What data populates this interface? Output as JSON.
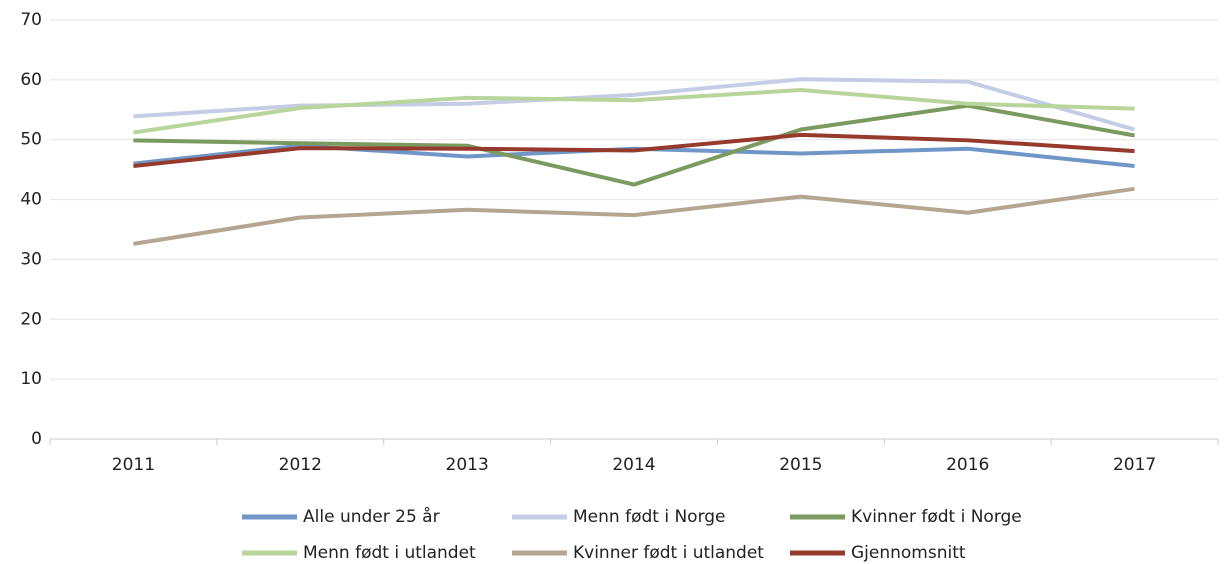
{
  "chart_data": {
    "type": "line",
    "categories": [
      "2011",
      "2012",
      "2013",
      "2014",
      "2015",
      "2016",
      "2017"
    ],
    "series": [
      {
        "name": "Alle under 25 år",
        "color": "#7096c8",
        "values": [
          46,
          49,
          47.2,
          48.5,
          47.7,
          48.5,
          45.6
        ]
      },
      {
        "name": "Menn født i Norge",
        "color": "#c4cce6",
        "values": [
          53.9,
          55.7,
          56,
          57.5,
          60.1,
          59.7,
          51.7
        ]
      },
      {
        "name": "Kvinner født i Norge",
        "color": "#7b9a60",
        "values": [
          49.9,
          49.4,
          49,
          42.5,
          51.7,
          55.7,
          50.7
        ]
      },
      {
        "name": "Menn født i utlandet",
        "color": "#b8d59c",
        "values": [
          51.2,
          55.3,
          57,
          56.6,
          58.3,
          56,
          55.2
        ]
      },
      {
        "name": "Kvinner født i utlandet",
        "color": "#b4a690",
        "values": [
          32.6,
          37,
          38.3,
          37.4,
          40.5,
          37.8,
          41.8
        ]
      },
      {
        "name": "Gjennomsnitt",
        "color": "#953a2c",
        "values": [
          45.6,
          48.6,
          48.5,
          48.2,
          50.8,
          49.9,
          48.1
        ]
      }
    ],
    "ylim": [
      0,
      70
    ],
    "yticks": [
      0,
      10,
      20,
      30,
      40,
      50,
      60,
      70
    ],
    "grid": true,
    "legend": "bottom"
  }
}
